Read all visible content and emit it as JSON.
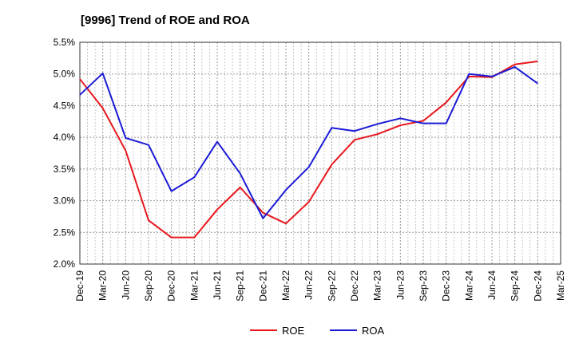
{
  "chart_data": {
    "type": "line",
    "title": "[9996]  Trend of ROE and ROA",
    "categories": [
      "Dec-19",
      "Mar-20",
      "Jun-20",
      "Sep-20",
      "Dec-20",
      "Mar-21",
      "Jun-21",
      "Sep-21",
      "Dec-21",
      "Mar-22",
      "Jun-22",
      "Sep-22",
      "Dec-22",
      "Mar-23",
      "Jun-23",
      "Sep-23",
      "Dec-23",
      "Mar-24",
      "Jun-24",
      "Sep-24",
      "Dec-24",
      "Mar-25"
    ],
    "ylim": [
      2.0,
      5.5
    ],
    "yticks": [
      "2.0%",
      "2.5%",
      "3.0%",
      "3.5%",
      "4.0%",
      "4.5%",
      "5.0%",
      "5.5%"
    ],
    "grid": true,
    "legend_position": "bottom",
    "series": [
      {
        "name": "ROE",
        "color": "#e8171d",
        "values": [
          4.92,
          4.46,
          3.79,
          2.69,
          2.42,
          2.42,
          2.86,
          3.21,
          2.81,
          2.64,
          2.98,
          3.57,
          3.96,
          4.05,
          4.19,
          4.26,
          4.55,
          4.96,
          4.95,
          5.15,
          5.2,
          null
        ]
      },
      {
        "name": "ROA",
        "color": "#1a1ad6",
        "values": [
          4.67,
          5.01,
          3.99,
          3.88,
          3.15,
          3.37,
          3.93,
          3.43,
          2.72,
          3.17,
          3.53,
          4.15,
          4.1,
          4.21,
          4.3,
          4.22,
          4.22,
          5.0,
          4.96,
          5.11,
          4.85,
          null
        ]
      }
    ]
  }
}
